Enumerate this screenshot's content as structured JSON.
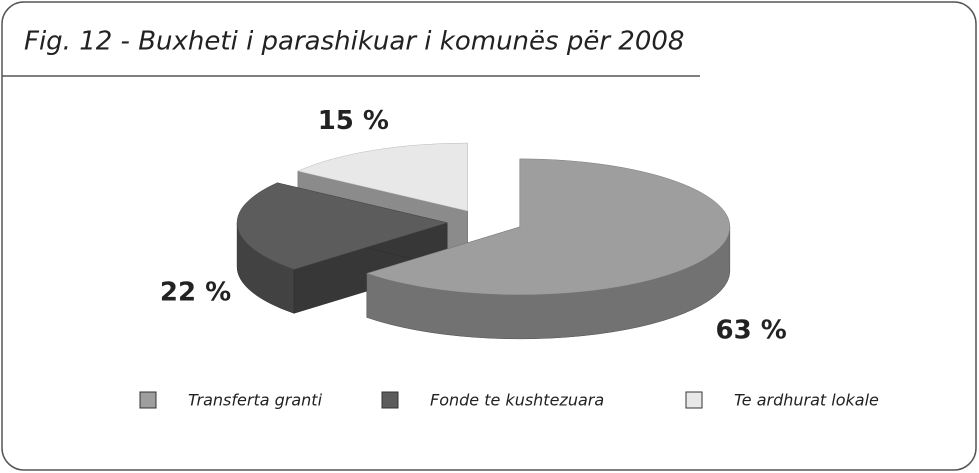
{
  "chart_data": {
    "type": "pie",
    "title": "Fig. 12 - Buxheti i parashikuar i komunës për 2008",
    "categories": [
      "Transferta granti",
      "Fonde te kushtezuara",
      "Te ardhurat lokale"
    ],
    "values": [
      63,
      22,
      15
    ],
    "value_labels": [
      "63 %",
      "22 %",
      "15 %"
    ],
    "colors": [
      "#9e9e9e",
      "#5c5c5c",
      "#e8e8e8"
    ],
    "three_d": true,
    "exploded": true,
    "legend": "bottom"
  }
}
